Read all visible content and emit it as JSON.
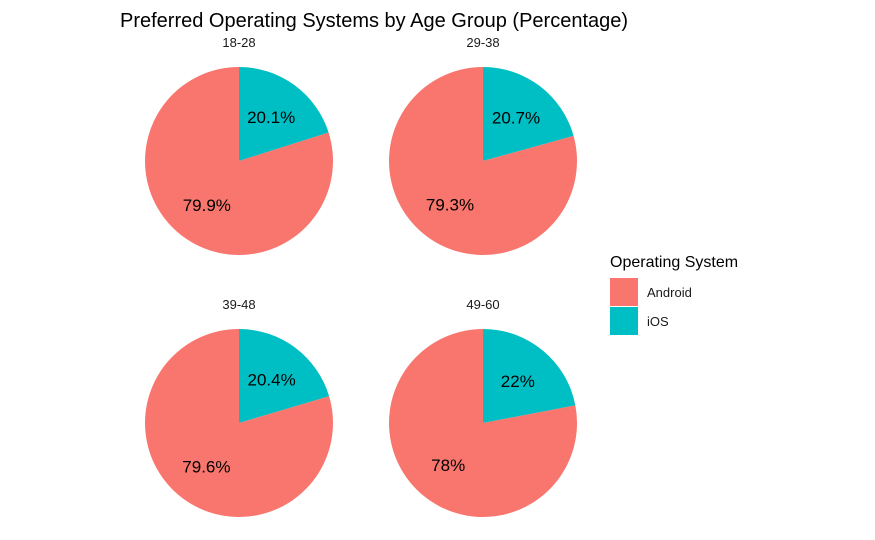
{
  "chart_data": {
    "type": "pie",
    "title": "Preferred Operating Systems by Age Group (Percentage)",
    "legend": {
      "title": "Operating System",
      "position": "right",
      "entries": [
        {
          "name": "Android",
          "color": "#F8766D"
        },
        {
          "name": "iOS",
          "color": "#00BFC4"
        }
      ]
    },
    "facets": [
      {
        "label": "18-28",
        "slices": [
          {
            "name": "Android",
            "value": 79.9,
            "label": "79.9%"
          },
          {
            "name": "iOS",
            "value": 20.1,
            "label": "20.1%"
          }
        ]
      },
      {
        "label": "29-38",
        "slices": [
          {
            "name": "Android",
            "value": 79.3,
            "label": "79.3%"
          },
          {
            "name": "iOS",
            "value": 20.7,
            "label": "20.7%"
          }
        ]
      },
      {
        "label": "39-48",
        "slices": [
          {
            "name": "Android",
            "value": 79.6,
            "label": "79.6%"
          },
          {
            "name": "iOS",
            "value": 20.4,
            "label": "20.4%"
          }
        ]
      },
      {
        "label": "49-60",
        "slices": [
          {
            "name": "Android",
            "value": 78,
            "label": "78%"
          },
          {
            "name": "iOS",
            "value": 22,
            "label": "22%"
          }
        ]
      }
    ]
  }
}
